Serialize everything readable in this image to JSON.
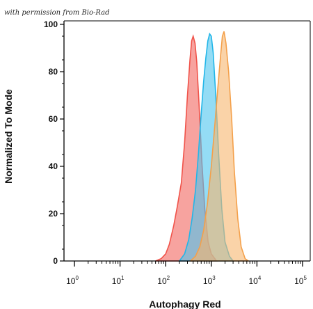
{
  "credit_text": "with permission from Bio-Rad",
  "chart_data": {
    "type": "area",
    "xscale": "log",
    "xlim": [
      1,
      100000
    ],
    "ylim": [
      0,
      100
    ],
    "xlabel": "Autophagy Red",
    "ylabel": "Normalized To Mode",
    "yticks": [
      0,
      20,
      40,
      60,
      80,
      100
    ],
    "xticks": [
      {
        "base": "10",
        "exp": "0",
        "value": 1
      },
      {
        "base": "10",
        "exp": "1",
        "value": 10
      },
      {
        "base": "10",
        "exp": "2",
        "value": 100
      },
      {
        "base": "10",
        "exp": "3",
        "value": 1000
      },
      {
        "base": "10",
        "exp": "4",
        "value": 10000
      },
      {
        "base": "10",
        "exp": "5",
        "value": 100000
      }
    ],
    "series": [
      {
        "color": "#f0534a",
        "fill": "#f2665f",
        "points": [
          [
            60,
            0
          ],
          [
            80,
            1
          ],
          [
            100,
            3
          ],
          [
            120,
            7
          ],
          [
            150,
            15
          ],
          [
            180,
            23
          ],
          [
            220,
            33
          ],
          [
            260,
            50
          ],
          [
            300,
            70
          ],
          [
            340,
            85
          ],
          [
            370,
            93
          ],
          [
            400,
            95
          ],
          [
            440,
            92
          ],
          [
            480,
            84
          ],
          [
            540,
            66
          ],
          [
            620,
            42
          ],
          [
            720,
            22
          ],
          [
            850,
            8
          ],
          [
            1000,
            3
          ],
          [
            1300,
            0
          ]
        ]
      },
      {
        "color": "#22b6e8",
        "fill": "#4cc4ee",
        "points": [
          [
            200,
            0
          ],
          [
            260,
            3
          ],
          [
            320,
            9
          ],
          [
            380,
            18
          ],
          [
            450,
            30
          ],
          [
            520,
            45
          ],
          [
            600,
            62
          ],
          [
            680,
            76
          ],
          [
            760,
            86
          ],
          [
            840,
            93
          ],
          [
            920,
            96
          ],
          [
            1000,
            95
          ],
          [
            1100,
            88
          ],
          [
            1250,
            70
          ],
          [
            1450,
            45
          ],
          [
            1700,
            22
          ],
          [
            2000,
            8
          ],
          [
            2500,
            2
          ],
          [
            3000,
            0
          ]
        ]
      },
      {
        "color": "#f4a04a",
        "fill": "#f7b56e",
        "points": [
          [
            350,
            0
          ],
          [
            450,
            2
          ],
          [
            560,
            6
          ],
          [
            680,
            13
          ],
          [
            820,
            24
          ],
          [
            1000,
            40
          ],
          [
            1200,
            58
          ],
          [
            1400,
            74
          ],
          [
            1600,
            87
          ],
          [
            1750,
            95
          ],
          [
            1900,
            97
          ],
          [
            2100,
            92
          ],
          [
            2400,
            80
          ],
          [
            2800,
            60
          ],
          [
            3200,
            38
          ],
          [
            3800,
            18
          ],
          [
            4500,
            6
          ],
          [
            5500,
            1
          ],
          [
            6500,
            0
          ]
        ]
      }
    ]
  }
}
